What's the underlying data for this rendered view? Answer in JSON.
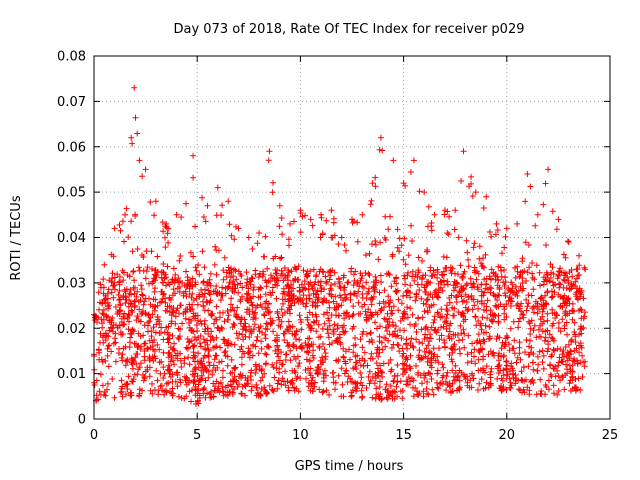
{
  "chart_data": {
    "type": "scatter",
    "title": "Day 073 of 2018, Rate Of TEC Index for receiver p029",
    "xlabel": "GPS time / hours",
    "ylabel": "ROTI / TECUs",
    "xlim": [
      0,
      25
    ],
    "ylim": [
      0,
      0.08
    ],
    "xticks": [
      0,
      5,
      10,
      15,
      20,
      25
    ],
    "xtick_labels": [
      "0",
      "5",
      "10",
      "15",
      "20",
      "25"
    ],
    "yticks": [
      0,
      0.01,
      0.02,
      0.03,
      0.04,
      0.05,
      0.06,
      0.07,
      0.08
    ],
    "ytick_labels": [
      "0",
      "0.01",
      "0.02",
      "0.03",
      "0.04",
      "0.05",
      "0.06",
      "0.07",
      "0.08"
    ],
    "grid": true,
    "marker": "+",
    "series": [
      {
        "name": "ROTI",
        "color": "#ff0000",
        "approx_point_count": 3000,
        "x_range": [
          0,
          23.8
        ],
        "typical_range": [
          0.005,
          0.035
        ],
        "upper_envelope": [
          [
            0.0,
            0.023
          ],
          [
            0.5,
            0.034
          ],
          [
            1.0,
            0.042
          ],
          [
            1.5,
            0.045
          ],
          [
            1.8,
            0.062
          ],
          [
            1.95,
            0.073
          ],
          [
            2.2,
            0.057
          ],
          [
            2.5,
            0.055
          ],
          [
            3.0,
            0.048
          ],
          [
            3.5,
            0.043
          ],
          [
            4.0,
            0.045
          ],
          [
            4.8,
            0.058
          ],
          [
            5.5,
            0.047
          ],
          [
            6.0,
            0.051
          ],
          [
            6.5,
            0.048
          ],
          [
            7.0,
            0.042
          ],
          [
            7.5,
            0.04
          ],
          [
            8.0,
            0.041
          ],
          [
            8.5,
            0.059
          ],
          [
            9.0,
            0.047
          ],
          [
            9.5,
            0.043
          ],
          [
            10.0,
            0.046
          ],
          [
            10.5,
            0.044
          ],
          [
            11.0,
            0.045
          ],
          [
            11.5,
            0.046
          ],
          [
            12.0,
            0.04
          ],
          [
            12.5,
            0.044
          ],
          [
            13.0,
            0.045
          ],
          [
            13.5,
            0.052
          ],
          [
            13.9,
            0.062
          ],
          [
            14.5,
            0.057
          ],
          [
            15.0,
            0.052
          ],
          [
            15.5,
            0.057
          ],
          [
            16.0,
            0.05
          ],
          [
            16.5,
            0.045
          ],
          [
            17.0,
            0.046
          ],
          [
            17.5,
            0.046
          ],
          [
            17.9,
            0.059
          ],
          [
            18.5,
            0.05
          ],
          [
            19.0,
            0.049
          ],
          [
            19.5,
            0.043
          ],
          [
            20.0,
            0.042
          ],
          [
            20.5,
            0.043
          ],
          [
            21.0,
            0.054
          ],
          [
            21.5,
            0.045
          ],
          [
            22.0,
            0.055
          ],
          [
            22.5,
            0.044
          ],
          [
            23.0,
            0.039
          ],
          [
            23.5,
            0.036
          ],
          [
            23.8,
            0.033
          ]
        ],
        "lower_envelope": [
          [
            0.0,
            0.004
          ],
          [
            2.0,
            0.005
          ],
          [
            4.0,
            0.005
          ],
          [
            5.0,
            0.003
          ],
          [
            6.0,
            0.005
          ],
          [
            8.0,
            0.005
          ],
          [
            10.0,
            0.006
          ],
          [
            12.0,
            0.005
          ],
          [
            14.0,
            0.004
          ],
          [
            16.0,
            0.005
          ],
          [
            18.0,
            0.006
          ],
          [
            20.0,
            0.006
          ],
          [
            22.0,
            0.005
          ],
          [
            23.8,
            0.006
          ]
        ]
      }
    ]
  }
}
